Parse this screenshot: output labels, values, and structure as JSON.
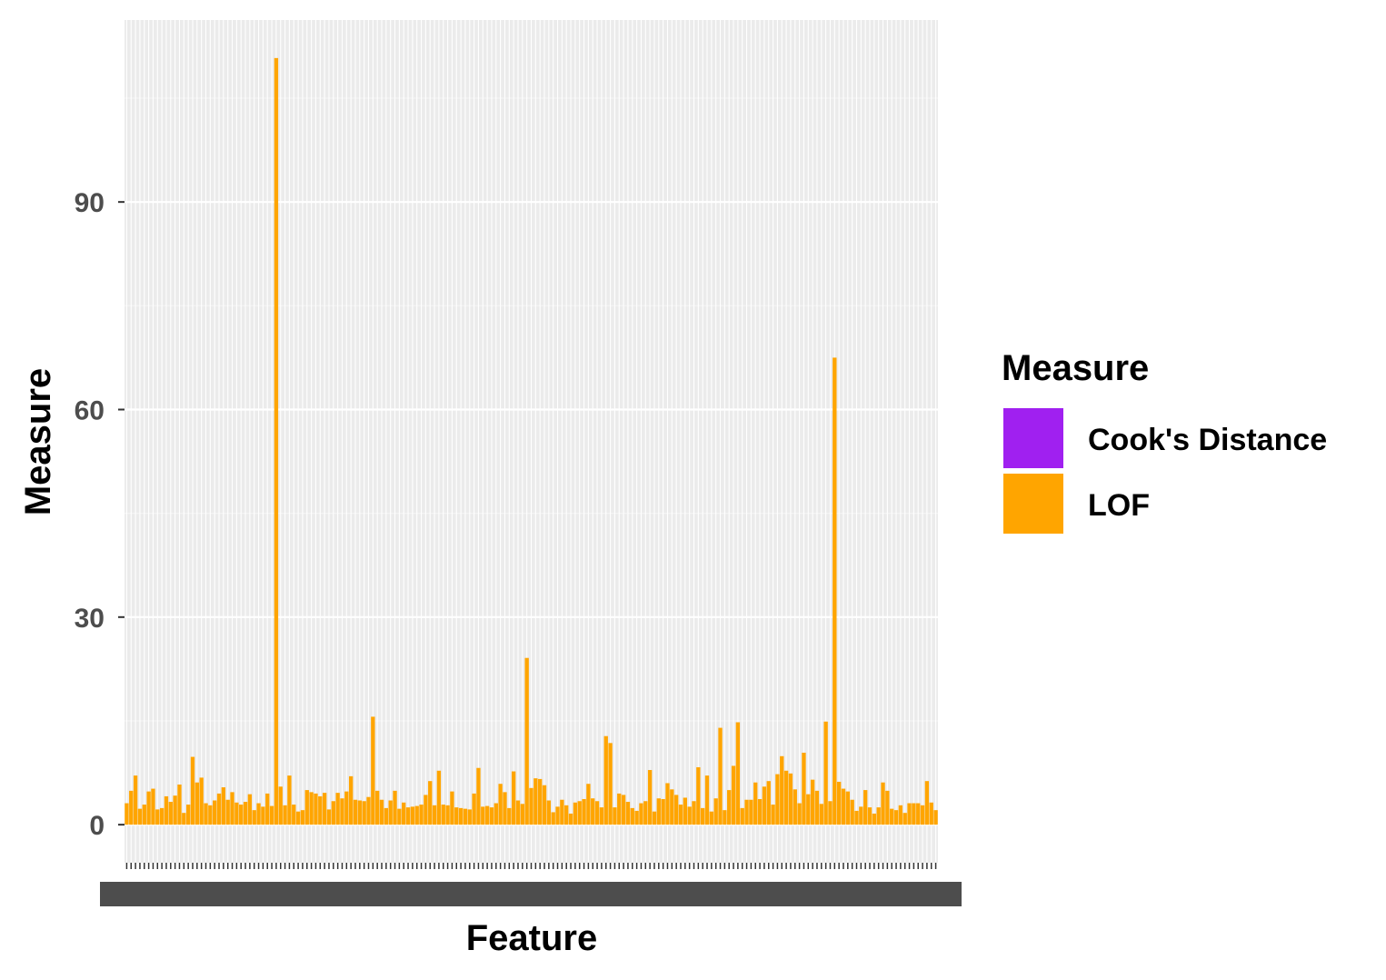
{
  "chart_data": {
    "type": "bar",
    "xlabel": "Feature",
    "ylabel": "Measure",
    "ylim": [
      -5.5,
      116.3
    ],
    "yticks": [
      0,
      30,
      60,
      90
    ],
    "ytick_labels": [
      "0",
      "30",
      "60",
      "90"
    ],
    "grid": true,
    "legend_position": "right",
    "legend": {
      "title": "Measure",
      "entries": [
        {
          "label": "Cook's Distance",
          "color": "#A020F0"
        },
        {
          "label": "LOF",
          "color": "#FFA500"
        }
      ]
    },
    "series": [
      {
        "name": "LOF",
        "color": "#FFA500",
        "values": [
          3.1,
          4.9,
          7.1,
          2.3,
          2.9,
          4.8,
          5.2,
          2.2,
          2.4,
          4.1,
          3.3,
          4.2,
          5.8,
          1.7,
          2.9,
          9.8,
          6.1,
          6.8,
          3.1,
          2.8,
          3.5,
          4.5,
          5.4,
          3.6,
          4.7,
          3.2,
          2.9,
          3.3,
          4.4,
          2.1,
          3.1,
          2.6,
          4.5,
          2.7,
          110.8,
          5.5,
          2.8,
          7.1,
          2.9,
          1.9,
          2.1,
          5.0,
          4.7,
          4.5,
          4.1,
          4.6,
          2.2,
          3.4,
          4.6,
          3.8,
          4.8,
          7.0,
          3.6,
          3.5,
          3.4,
          4.0,
          15.6,
          4.9,
          3.6,
          2.4,
          3.5,
          4.9,
          2.3,
          3.2,
          2.5,
          2.6,
          2.7,
          2.9,
          4.3,
          6.3,
          2.8,
          7.8,
          2.9,
          2.8,
          4.8,
          2.5,
          2.4,
          2.3,
          2.2,
          4.5,
          8.2,
          2.6,
          2.7,
          2.5,
          3.1,
          5.9,
          4.7,
          2.4,
          7.7,
          3.5,
          3.0,
          24.1,
          5.3,
          6.7,
          6.6,
          5.7,
          3.5,
          1.8,
          2.6,
          3.6,
          2.8,
          1.6,
          3.2,
          3.4,
          3.7,
          5.9,
          3.8,
          3.4,
          2.5,
          12.8,
          11.8,
          2.5,
          4.5,
          4.3,
          3.3,
          2.4,
          2.0,
          3.1,
          3.4,
          7.9,
          1.9,
          3.8,
          3.7,
          6.0,
          5.1,
          4.3,
          2.9,
          3.9,
          2.6,
          3.4,
          8.3,
          2.4,
          7.1,
          1.9,
          3.8,
          14.0,
          2.1,
          5.0,
          8.5,
          14.8,
          2.4,
          3.6,
          3.6,
          6.1,
          3.7,
          5.5,
          6.3,
          2.9,
          7.3,
          9.9,
          7.8,
          7.4,
          5.1,
          3.1,
          10.4,
          4.4,
          6.5,
          4.9,
          3.0,
          14.9,
          3.4,
          67.5,
          6.2,
          5.2,
          4.8,
          3.6,
          2.0,
          2.6,
          5.0,
          2.5,
          1.6,
          2.5,
          6.1,
          4.9,
          2.3,
          2.1,
          2.8,
          1.7,
          3.1,
          3.1,
          3.1,
          2.8,
          6.3,
          3.2,
          2.1
        ]
      }
    ]
  }
}
